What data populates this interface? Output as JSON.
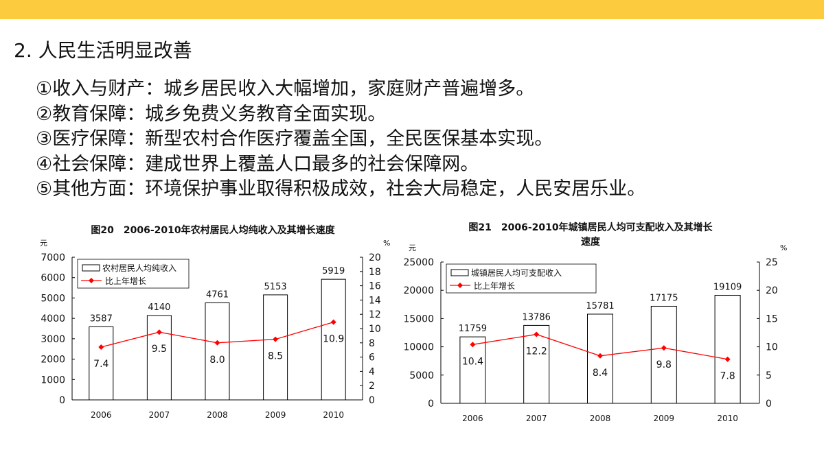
{
  "accent_color": "#fccb3e",
  "heading": "2. 人民生活明显改善",
  "items": [
    "①收入与财产：城乡居民收入大幅增加，家庭财产普遍增多。",
    "②教育保障：城乡免费义务教育全面实现。",
    "③医疗保障：新型农村合作医疗覆盖全国，全民医保基本实现。",
    "④社会保障：建成世界上覆盖人口最多的社会保障网。",
    "⑤其他方面：环境保护事业取得积极成效，社会大局稳定，人民安居乐业。"
  ],
  "chart_data": [
    {
      "type": "bar",
      "title": "图20　2006-2010年农村居民人均纯收入及其增长速度",
      "ylabel": "元",
      "y2label": "%",
      "categories": [
        "2006",
        "2007",
        "2008",
        "2009",
        "2010"
      ],
      "ylim": [
        0,
        7000
      ],
      "yticks": [
        0,
        1000,
        2000,
        3000,
        4000,
        5000,
        6000,
        7000
      ],
      "y2lim": [
        0,
        20
      ],
      "y2ticks": [
        0,
        2,
        4,
        6,
        8,
        10,
        12,
        14,
        16,
        18,
        20
      ],
      "series": [
        {
          "name": "农村居民人均纯收入",
          "kind": "bar",
          "axis": "left",
          "values": [
            3587,
            4140,
            4761,
            5153,
            5919
          ],
          "labels": [
            "3587",
            "4140",
            "4761",
            "5153",
            "5919"
          ]
        },
        {
          "name": "比上年增长",
          "kind": "line",
          "axis": "right",
          "color": "#ff0000",
          "values": [
            7.4,
            9.5,
            8.0,
            8.5,
            10.9
          ],
          "labels": [
            "7.4",
            "9.5",
            "8.0",
            "8.5",
            "10.9"
          ]
        }
      ],
      "legend": "top-left",
      "grid": false
    },
    {
      "type": "bar",
      "title": "图21　2006-2010年城镇居民人均可支配收入及其增长",
      "title_line2": "速度",
      "ylabel": "元",
      "y2label": "%",
      "categories": [
        "2006",
        "2007",
        "2008",
        "2009",
        "2010"
      ],
      "ylim": [
        0,
        25000
      ],
      "yticks": [
        0,
        5000,
        10000,
        15000,
        20000,
        25000
      ],
      "y2lim": [
        0,
        25
      ],
      "y2ticks": [
        0,
        5,
        10,
        15,
        20,
        25
      ],
      "series": [
        {
          "name": "城镇居民人均可支配收入",
          "kind": "bar",
          "axis": "left",
          "values": [
            11759,
            13786,
            15781,
            17175,
            19109
          ],
          "labels": [
            "11759",
            "13786",
            "15781",
            "17175",
            "19109"
          ]
        },
        {
          "name": "比上年增长",
          "kind": "line",
          "axis": "right",
          "color": "#ff0000",
          "values": [
            10.4,
            12.2,
            8.4,
            9.8,
            7.8
          ],
          "labels": [
            "10.4",
            "12.2",
            "8.4",
            "9.8",
            "7.8"
          ]
        }
      ],
      "legend": "top-left",
      "grid": false
    }
  ]
}
